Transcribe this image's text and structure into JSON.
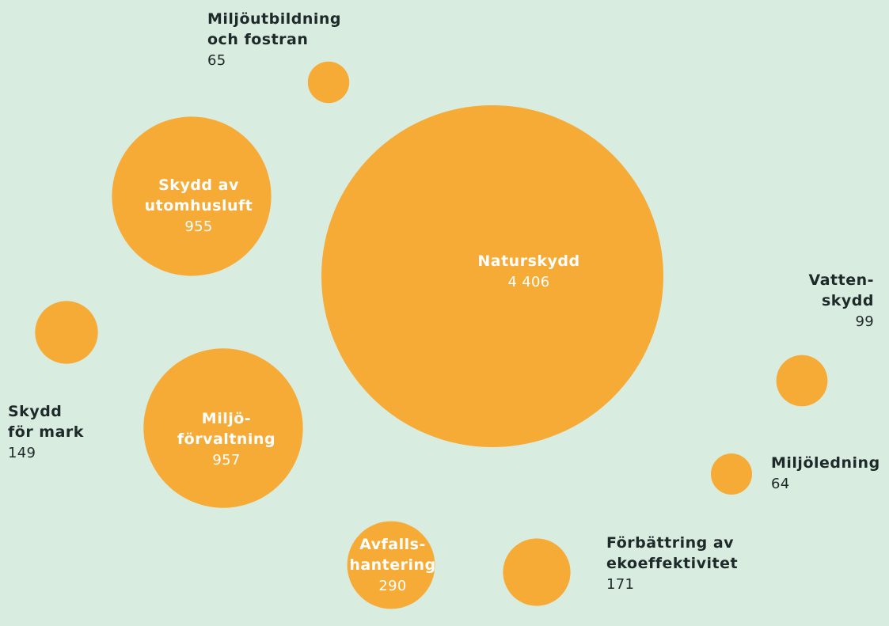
{
  "chart_data": {
    "type": "bubble",
    "title": "",
    "bubble_color": "#f6ab36",
    "label_color_inside": "#ffffff",
    "label_color_outside": "#1e2a2a",
    "background_color": "#d9ece0",
    "items": [
      {
        "lines": [
          "Naturskydd"
        ],
        "value": 4406,
        "value_label": "4 406"
      },
      {
        "lines": [
          "Miljö-",
          "förvaltning"
        ],
        "value": 957,
        "value_label": "957"
      },
      {
        "lines": [
          "Skydd av",
          "utomhusluft"
        ],
        "value": 955,
        "value_label": "955"
      },
      {
        "lines": [
          "Avfalls-",
          "hantering"
        ],
        "value": 290,
        "value_label": "290"
      },
      {
        "lines": [
          "Förbättring av",
          "ekoeffektivitet"
        ],
        "value": 171,
        "value_label": "171"
      },
      {
        "lines": [
          "Skydd",
          "för mark"
        ],
        "value": 149,
        "value_label": "149"
      },
      {
        "lines": [
          "Vatten-",
          "skydd"
        ],
        "value": 99,
        "value_label": "99"
      },
      {
        "lines": [
          "Miljöutbildning",
          "och fostran"
        ],
        "value": 65,
        "value_label": "65"
      },
      {
        "lines": [
          "Miljöledning"
        ],
        "value": 64,
        "value_label": "64"
      }
    ]
  }
}
